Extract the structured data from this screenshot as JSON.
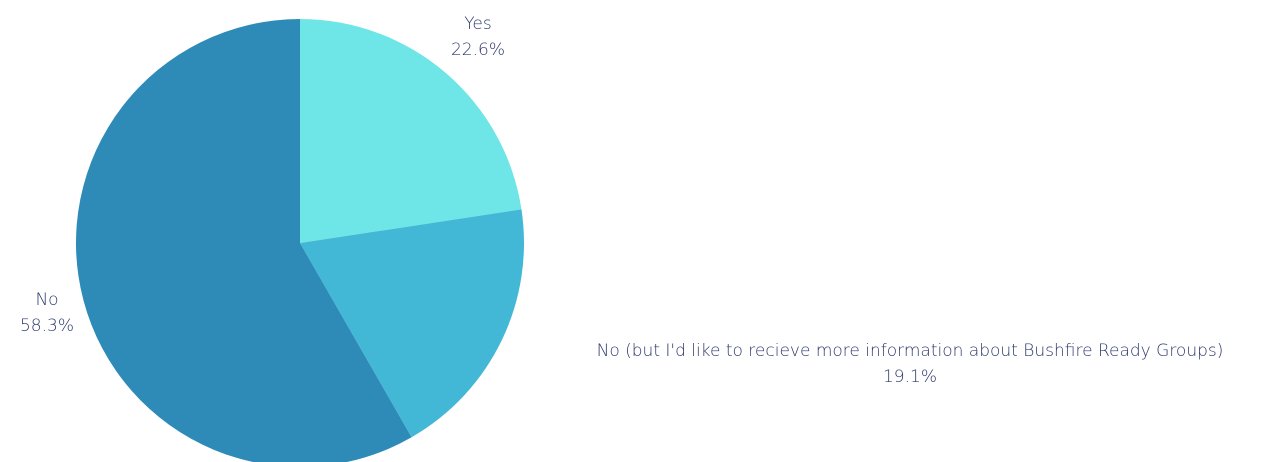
{
  "chart_data": {
    "type": "pie",
    "slices": [
      {
        "label": "Yes",
        "value": 22.6,
        "value_label": "22.6%",
        "color": "#6ee5e6"
      },
      {
        "label": "No (but I'd like to recieve more information about Bushfire Ready Groups)",
        "value": 19.1,
        "value_label": "19.1%",
        "color": "#43b8d6"
      },
      {
        "label": "No",
        "value": 58.3,
        "value_label": "58.3%",
        "color": "#2e8bb7"
      }
    ],
    "start_angle": "12 o'clock",
    "direction": "clockwise",
    "label_color": "#2d3a6e"
  }
}
